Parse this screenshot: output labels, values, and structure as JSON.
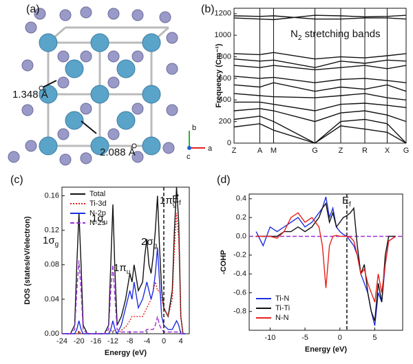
{
  "structure": {
    "label": "(a)",
    "bond_labels": [
      "1.348 Å",
      "2.088 Å"
    ],
    "axes": [
      "b",
      "a",
      "c"
    ]
  },
  "chart_data": [
    {
      "type": "line",
      "label": "(b)",
      "y_label": "Frequency (Cm⁻¹)",
      "color": "#111111",
      "grid": true,
      "annotations": [
        {
          "text": "N",
          "sub": "2",
          "tail": " stretching bands"
        }
      ],
      "x": [
        0,
        0.15,
        0.23,
        0.47,
        0.62,
        0.76,
        0.89,
        1.0
      ],
      "xlim": [
        0,
        1.0
      ],
      "xticks": [
        {
          "value": 0,
          "label": "Z"
        },
        {
          "value": 0.15,
          "label": "A"
        },
        {
          "value": 0.23,
          "label": "M"
        },
        {
          "value": 0.47,
          "label": "G"
        },
        {
          "value": 0.62,
          "label": "Z"
        },
        {
          "value": 0.76,
          "label": "R"
        },
        {
          "value": 0.89,
          "label": "X"
        },
        {
          "value": 1.0,
          "label": "G"
        }
      ],
      "ylim": [
        0,
        1250
      ],
      "yticks": [
        0,
        200,
        400,
        600,
        800,
        1000,
        1200
      ],
      "series": [
        {
          "values": [
            1160,
            1150,
            1145,
            1185,
            1180,
            1170,
            1175,
            1185
          ]
        },
        {
          "values": [
            1180,
            1175,
            1180,
            1150,
            1150,
            1160,
            1160,
            1150
          ]
        },
        {
          "values": [
            830,
            820,
            840,
            780,
            800,
            790,
            810,
            830
          ]
        },
        {
          "values": [
            780,
            760,
            770,
            700,
            760,
            740,
            770,
            760
          ]
        },
        {
          "values": [
            720,
            700,
            720,
            680,
            700,
            720,
            690,
            720
          ]
        },
        {
          "values": [
            620,
            600,
            610,
            560,
            590,
            600,
            580,
            560
          ]
        },
        {
          "values": [
            540,
            520,
            560,
            480,
            520,
            500,
            540,
            480
          ]
        },
        {
          "values": [
            460,
            440,
            430,
            420,
            440,
            460,
            420,
            400
          ]
        },
        {
          "values": [
            380,
            380,
            360,
            300,
            360,
            370,
            350,
            330
          ]
        },
        {
          "values": [
            300,
            320,
            300,
            200,
            280,
            300,
            260,
            200
          ]
        },
        {
          "values": [
            220,
            250,
            200,
            0,
            200,
            220,
            180,
            0
          ]
        },
        {
          "values": [
            150,
            180,
            120,
            0,
            160,
            130,
            100,
            0
          ]
        }
      ]
    },
    {
      "type": "line",
      "label": "(c)",
      "x_label": "Energy (eV)",
      "y_label": "DOS (states/eV/electron)",
      "legend": "top",
      "vlines": [
        0
      ],
      "annotations": [
        {
          "text": "1σ",
          "sub": "g"
        },
        {
          "text": "1σ",
          "sub": "u"
        },
        {
          "text": "1π",
          "sub": "u"
        },
        {
          "text": "2σ",
          "sub": "g"
        },
        {
          "text": "1π",
          "sub": "g",
          "sup": "*"
        },
        {
          "text": "E",
          "sub": "f"
        }
      ],
      "x": [
        -24,
        -22,
        -21,
        -20.5,
        -20,
        -19.5,
        -19,
        -18,
        -16,
        -14,
        -13,
        -12.5,
        -12,
        -11.5,
        -11,
        -10,
        -9,
        -8,
        -7.5,
        -7,
        -6,
        -5,
        -4.5,
        -4,
        -3.5,
        -3,
        -2.5,
        -2,
        -1.5,
        -1,
        -0.5,
        0,
        1,
        2,
        2.5,
        3,
        3.5,
        4,
        4.5,
        5
      ],
      "xlim": [
        -24,
        6
      ],
      "xticks": [
        -24,
        -20,
        -16,
        -12,
        -8,
        -4,
        0,
        4
      ],
      "ylim": [
        0,
        0.17
      ],
      "yticks": [
        {
          "value": 0,
          "label": "0.00"
        },
        0.04,
        0.08,
        0.12,
        0.16
      ],
      "series": [
        {
          "name": "Total",
          "color": "#111111",
          "style": "solid",
          "values": [
            0,
            0,
            0.01,
            0.08,
            0.14,
            0.08,
            0.01,
            0,
            0,
            0,
            0.01,
            0.08,
            0.15,
            0.07,
            0.01,
            0.02,
            0.04,
            0.07,
            0.06,
            0.08,
            0.05,
            0.06,
            0.09,
            0.11,
            0.08,
            0.07,
            0.09,
            0.12,
            0.16,
            0.1,
            0.05,
            0.03,
            0.02,
            0.05,
            0.12,
            0.17,
            0.13,
            0.02,
            0,
            0
          ]
        },
        {
          "name": "Ti-3d",
          "color": "#e8201a",
          "style": "dotted",
          "values": [
            0,
            0,
            0,
            0,
            0.003,
            0,
            0,
            0,
            0,
            0,
            0,
            0.003,
            0.004,
            0.003,
            0,
            0.004,
            0.008,
            0.015,
            0.02,
            0.02,
            0.02,
            0.02,
            0.025,
            0.03,
            0.035,
            0.04,
            0.05,
            0.06,
            0.05,
            0.05,
            0.04,
            0.03,
            0.02,
            0.04,
            0.1,
            0.14,
            0.11,
            0.02,
            0,
            0
          ]
        },
        {
          "name": "N-2p",
          "color": "#1f2fe0",
          "style": "solid",
          "values": [
            0,
            0,
            0,
            0.005,
            0.015,
            0.005,
            0,
            0,
            0,
            0,
            0,
            0.005,
            0.015,
            0.005,
            0,
            0.01,
            0.03,
            0.05,
            0.04,
            0.06,
            0.03,
            0.04,
            0.05,
            0.06,
            0.05,
            0.04,
            0.05,
            0.07,
            0.1,
            0.06,
            0.02,
            0.01,
            0.005,
            0.005,
            0.01,
            0.015,
            0.01,
            0,
            0,
            0
          ]
        },
        {
          "name": "N-2s",
          "color": "#9b30d9",
          "style": "dashed",
          "values": [
            0,
            0,
            0.005,
            0.05,
            0.085,
            0.05,
            0.005,
            0,
            0,
            0,
            0.005,
            0.05,
            0.08,
            0.04,
            0.005,
            0.002,
            0.002,
            0.002,
            0.002,
            0.002,
            0.002,
            0.002,
            0.002,
            0.005,
            0.005,
            0.005,
            0.005,
            0.01,
            0.02,
            0.01,
            0.005,
            0.002,
            0.002,
            0.002,
            0.002,
            0.002,
            0.002,
            0,
            0,
            0
          ]
        }
      ]
    },
    {
      "type": "line",
      "label": "(d)",
      "x_label": "Energy (eV)",
      "y_label": "-COHP",
      "legend": "bottom-left",
      "vlines": [
        1
      ],
      "hlines": [
        0
      ],
      "hline_color": "#9b30d9",
      "annotations": [
        {
          "text": "E",
          "sub": "f"
        }
      ],
      "x": [
        -12,
        -11,
        -10,
        -9,
        -8,
        -7,
        -6,
        -5,
        -4,
        -3,
        -2.5,
        -2,
        -1.5,
        -1,
        -0.5,
        0,
        0.5,
        1,
        1.5,
        2,
        2.5,
        3,
        3.5,
        4,
        4.5,
        5,
        5.5,
        6,
        6.5,
        7,
        8
      ],
      "xlim": [
        -13,
        9
      ],
      "xticks": [
        -10,
        -5,
        0,
        5
      ],
      "ylim": [
        -1.0,
        0.45
      ],
      "yticks": [
        0.4,
        0.2,
        {
          "value": 0,
          "label": "0.0"
        },
        -0.2,
        -0.4,
        -0.6,
        -0.8
      ],
      "series": [
        {
          "name": "Ti-N",
          "color": "#1f2fe0",
          "style": "solid",
          "values": [
            0.05,
            -0.1,
            0.1,
            0.05,
            0.1,
            0.15,
            0.2,
            0.1,
            0.15,
            0.25,
            0.3,
            0.42,
            0.2,
            0.3,
            0.1,
            0.05,
            0.02,
            0,
            -0.05,
            -0.1,
            -0.2,
            -0.4,
            -0.5,
            -0.6,
            -0.8,
            -0.95,
            -0.6,
            -0.7,
            -0.3,
            -0.05,
            0
          ]
        },
        {
          "name": "Ti-Ti",
          "color": "#111111",
          "style": "solid",
          "values": [
            0,
            0,
            0,
            0,
            0.05,
            0.05,
            0.1,
            0.05,
            0.1,
            0.2,
            0.3,
            0.35,
            0.15,
            0.25,
            0.1,
            0.15,
            0.2,
            0.22,
            0.25,
            0.3,
            -0.1,
            -0.4,
            -0.3,
            -0.6,
            -0.8,
            -0.9,
            -0.5,
            -0.7,
            -0.2,
            0,
            0
          ]
        },
        {
          "name": "N-N",
          "color": "#e8201a",
          "style": "solid",
          "values": [
            0,
            0,
            0,
            -0.02,
            0.05,
            0.2,
            0.25,
            0.15,
            0.2,
            0.1,
            -0.1,
            -0.55,
            -0.1,
            0,
            0.01,
            0,
            0,
            0,
            -0.01,
            -0.05,
            -0.2,
            -0.4,
            -0.35,
            -0.5,
            -0.6,
            -0.7,
            -0.4,
            -0.6,
            -0.3,
            -0.05,
            0
          ]
        }
      ]
    }
  ]
}
